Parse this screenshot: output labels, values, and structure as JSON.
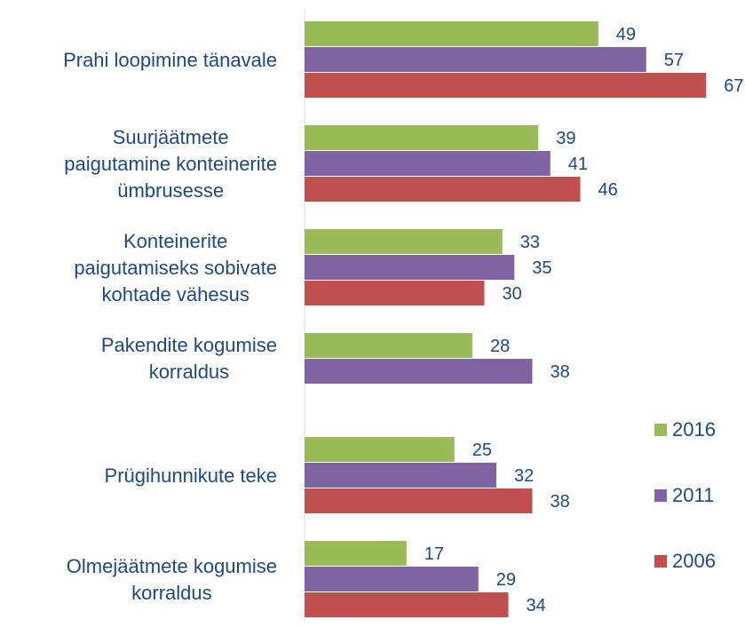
{
  "chart_data": {
    "type": "bar",
    "orientation": "horizontal",
    "categories": [
      "Prahi loopimine tänavale",
      "Suurjäätmete\npaigutamine konteinerite\nümbrusesse",
      "Konteinerite\npaigutamiseks sobivate\nkohtade vähesus",
      "Pakendite kogumise\nkorraldus",
      "Prügihunnikute teke",
      "Olmejäätmete kogumise\nkorraldus"
    ],
    "series": [
      {
        "name": "2016",
        "color": "#9bbb59",
        "values": [
          49,
          39,
          33,
          28,
          25,
          17
        ]
      },
      {
        "name": "2011",
        "color": "#8064a2",
        "values": [
          57,
          41,
          35,
          38,
          32,
          29
        ]
      },
      {
        "name": "2006",
        "color": "#c0504d",
        "values": [
          67,
          46,
          30,
          null,
          38,
          34
        ]
      }
    ],
    "legend": "right"
  }
}
